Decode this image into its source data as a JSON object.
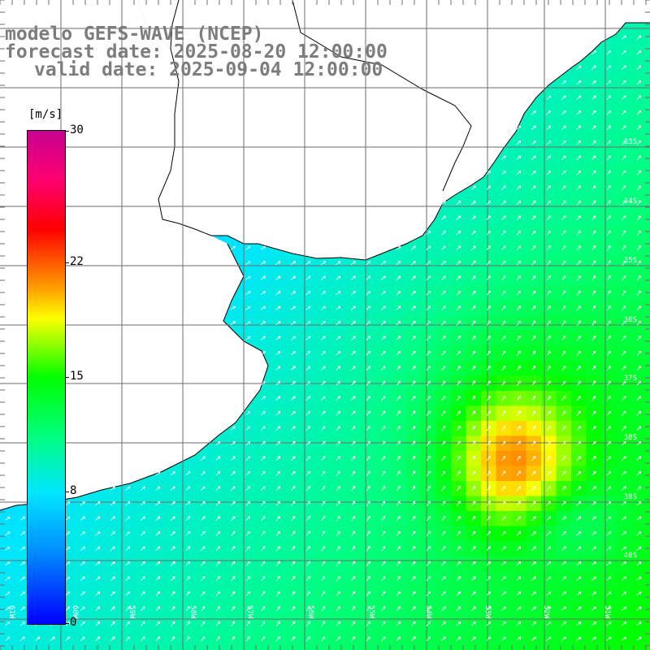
{
  "header": {
    "line1": "modelo GEFS-WAVE (NCEP)",
    "line2": "forecast date: 2025-08-20 12:00:00",
    "line3": "valid date: 2025-09-04 12:00:00"
  },
  "colorbar": {
    "unit": "[m/s]",
    "ticks": [
      "30",
      "22",
      "15",
      "8",
      "0"
    ],
    "min": 0,
    "max": 30,
    "colors": [
      "#0000ff",
      "#0090ff",
      "#00e6ff",
      "#00ff80",
      "#00ff00",
      "#80ff00",
      "#ffff00",
      "#ffa000",
      "#ff5000",
      "#ff0000",
      "#c80090"
    ]
  },
  "map": {
    "variable": "wind speed and direction",
    "lat_labels": [
      "33S",
      "34S",
      "35S",
      "36S",
      "37S",
      "38S",
      "39S",
      "40S"
    ],
    "lon_labels": [
      "61W",
      "60W",
      "59W",
      "58W",
      "57W",
      "56W",
      "55W",
      "54W",
      "53W",
      "52W",
      "51W"
    ],
    "prevailing_direction": "toward northeast",
    "max_speed_region": "south-east, about 20 m/s near 38.5S 53W",
    "colors": {
      "land": "#ffffff",
      "coast": "#000000",
      "grid": "#6e6e6e",
      "arrow": "#ffffff"
    }
  }
}
